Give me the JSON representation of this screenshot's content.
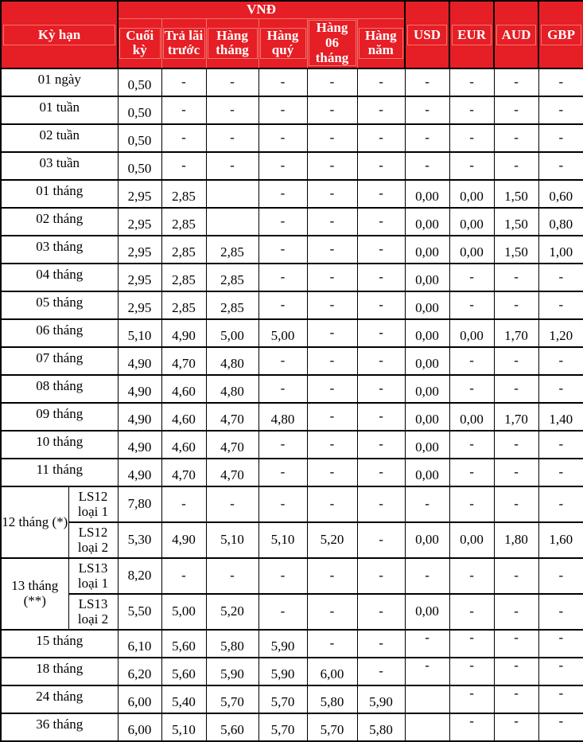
{
  "colors": {
    "header_bg": "#e61e25",
    "header_text": "#ffffff",
    "header_grid": "#f4756f",
    "body_grid": "#000000",
    "body_bg": "#ffffff"
  },
  "header": {
    "term": "Kỳ hạn",
    "vnd_group": "VNĐ",
    "vnd_cols": [
      "Cuối kỳ",
      "Trả lãi trước",
      "Hàng tháng",
      "Hàng quý",
      "Hàng 06 tháng",
      "Hàng năm"
    ],
    "fx_cols": [
      "USD",
      "EUR",
      "AUD",
      "GBP"
    ]
  },
  "rows": [
    {
      "term": "01 ngày",
      "values": [
        "0,50",
        "-",
        "-",
        "-",
        "-",
        "-",
        "-",
        "-",
        "-",
        "-"
      ]
    },
    {
      "term": "01 tuần",
      "values": [
        "0,50",
        "-",
        "-",
        "-",
        "-",
        "-",
        "-",
        "-",
        "-",
        "-"
      ]
    },
    {
      "term": "02 tuần",
      "values": [
        "0,50",
        "-",
        "-",
        "-",
        "-",
        "-",
        "-",
        "-",
        "-",
        "-"
      ]
    },
    {
      "term": "03 tuần",
      "values": [
        "0,50",
        "-",
        "-",
        "-",
        "-",
        "-",
        "-",
        "-",
        "-",
        "-"
      ]
    },
    {
      "term": "01 tháng",
      "values": [
        "2,95",
        "2,85",
        "",
        "-",
        "-",
        "-",
        "0,00",
        "0,00",
        "1,50",
        "0,60"
      ]
    },
    {
      "term": "02 tháng",
      "values": [
        "2,95",
        "2,85",
        "",
        "-",
        "-",
        "-",
        "0,00",
        "0,00",
        "1,50",
        "0,80"
      ]
    },
    {
      "term": "03 tháng",
      "values": [
        "2,95",
        "2,85",
        "2,85",
        "-",
        "-",
        "-",
        "0,00",
        "0,00",
        "1,50",
        "1,00"
      ]
    },
    {
      "term": "04 tháng",
      "values": [
        "2,95",
        "2,85",
        "2,85",
        "-",
        "-",
        "-",
        "0,00",
        "-",
        "-",
        "-"
      ]
    },
    {
      "term": "05 tháng",
      "values": [
        "2,95",
        "2,85",
        "2,85",
        "-",
        "-",
        "-",
        "0,00",
        "-",
        "-",
        "-"
      ]
    },
    {
      "term": "06 tháng",
      "values": [
        "5,10",
        "4,90",
        "5,00",
        "5,00",
        "-",
        "-",
        "0,00",
        "0,00",
        "1,70",
        "1,20"
      ]
    },
    {
      "term": "07 tháng",
      "values": [
        "4,90",
        "4,70",
        "4,80",
        "-",
        "-",
        "-",
        "0,00",
        "-",
        "-",
        "-"
      ]
    },
    {
      "term": "08 tháng",
      "values": [
        "4,90",
        "4,60",
        "4,80",
        "-",
        "-",
        "-",
        "0,00",
        "-",
        "-",
        "-"
      ]
    },
    {
      "term": "09 tháng",
      "values": [
        "4,90",
        "4,60",
        "4,70",
        "4,80",
        "-",
        "-",
        "0,00",
        "0,00",
        "1,70",
        "1,40"
      ]
    },
    {
      "term": "10 tháng",
      "values": [
        "4,90",
        "4,60",
        "4,70",
        "-",
        "-",
        "-",
        "0,00",
        "-",
        "-",
        "-"
      ]
    },
    {
      "term": "11 tháng",
      "values": [
        "4,90",
        "4,70",
        "4,70",
        "-",
        "-",
        "-",
        "0,00",
        "-",
        "-",
        "-"
      ]
    },
    {
      "term": "12 tháng (*)",
      "term_rowspan": 2,
      "sub": "LS12 loại 1",
      "tall": true,
      "values": [
        "7,80",
        "-",
        "-",
        "-",
        "-",
        "-",
        "-",
        "-",
        "-",
        "-"
      ]
    },
    {
      "sub": "LS12 loại 2",
      "tall": true,
      "values": [
        "5,30",
        "4,90",
        "5,10",
        "5,10",
        "5,20",
        "-",
        "0,00",
        "0,00",
        "1,80",
        "1,60"
      ]
    },
    {
      "term": "13 tháng (**)",
      "term_rowspan": 2,
      "sub": "LS13 loại 1",
      "tall": true,
      "values": [
        "8,20",
        "-",
        "-",
        "-",
        "-",
        "-",
        "-",
        "-",
        "-",
        "-"
      ]
    },
    {
      "sub": "LS13 loại 2",
      "tall": true,
      "values": [
        "5,50",
        "5,00",
        "5,20",
        "-",
        "-",
        "-",
        "0,00",
        "-",
        "-",
        "-"
      ]
    },
    {
      "term": "15 tháng",
      "values": [
        "6,10",
        "5,60",
        "5,80",
        "5,90",
        "-",
        "-",
        "-",
        "-",
        "-",
        "-"
      ],
      "raised": [
        6,
        7,
        8,
        9
      ]
    },
    {
      "term": "18 tháng",
      "values": [
        "6,20",
        "5,60",
        "5,90",
        "5,90",
        "6,00",
        "-",
        "-",
        "-",
        "-",
        "-"
      ],
      "raised": [
        6,
        7,
        8,
        9
      ]
    },
    {
      "term": "24 tháng",
      "values": [
        "6,00",
        "5,40",
        "5,70",
        "5,70",
        "5,80",
        "5,90",
        "",
        "-",
        "-",
        "-"
      ],
      "raised": [
        7,
        8,
        9
      ]
    },
    {
      "term": "36 tháng",
      "values": [
        "6,00",
        "5,10",
        "5,60",
        "5,70",
        "5,70",
        "5,80",
        "",
        "-",
        "-",
        "-"
      ],
      "raised": [
        7,
        8,
        9
      ]
    }
  ]
}
